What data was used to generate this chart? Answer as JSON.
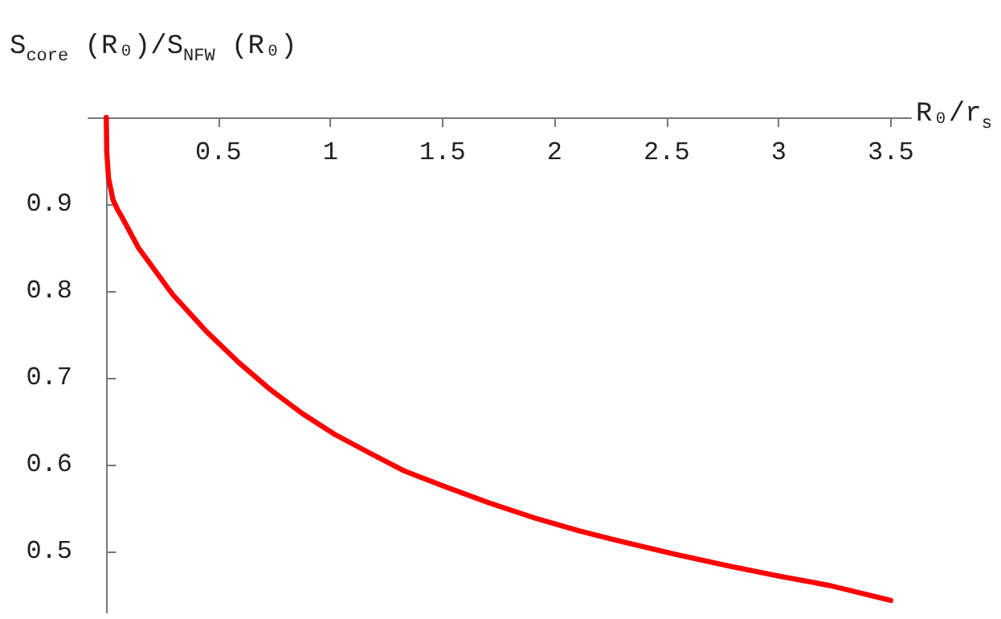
{
  "chart_data": {
    "type": "line",
    "xlabel": "R₀/r$_{s}$",
    "ylabel": "S$_{core}$ (R₀)/S$_{NFW}$ (R₀)",
    "xlim": [
      -0.08,
      3.59
    ],
    "ylim": [
      0.43,
      1.0
    ],
    "xticks": [
      0.5,
      1,
      1.5,
      2,
      2.5,
      3,
      3.5
    ],
    "yticks": [
      0.5,
      0.6,
      0.7,
      0.8,
      0.9
    ],
    "grid": false,
    "marker": "none",
    "series": [
      {
        "color": "#ff0000",
        "x": [
          0,
          0.002,
          0.01,
          0.03,
          0.05,
          0.066,
          0.143,
          0.296,
          0.445,
          0.59,
          0.73,
          0.875,
          1.02,
          1.18,
          1.33,
          1.51,
          1.71,
          1.91,
          2.11,
          2.31,
          2.54,
          2.77,
          3.0,
          3.23,
          3.5
        ],
        "values": [
          1.0,
          0.96,
          0.93,
          0.905,
          0.894,
          0.887,
          0.85,
          0.796,
          0.754,
          0.718,
          0.687,
          0.659,
          0.635,
          0.613,
          0.593,
          0.575,
          0.556,
          0.539,
          0.524,
          0.511,
          0.497,
          0.484,
          0.472,
          0.461,
          0.444
        ]
      }
    ]
  }
}
